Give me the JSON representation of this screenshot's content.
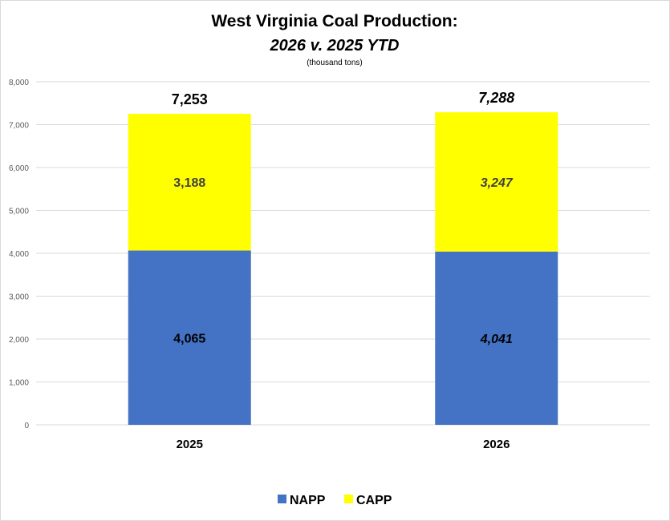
{
  "chart_data": {
    "type": "bar",
    "stacked": true,
    "title": "West Virginia Coal Production:",
    "subtitle": "2026 v. 2025 YTD",
    "units": "(thousand tons)",
    "xlabel": "",
    "ylabel": "",
    "categories": [
      "2025",
      "2026"
    ],
    "series": [
      {
        "name": "NAPP",
        "color": "#4472C4",
        "values": [
          4065,
          4041
        ],
        "labels": [
          "4,065",
          "4,041"
        ]
      },
      {
        "name": "CAPP",
        "color": "#FFFF00",
        "values": [
          3188,
          3247
        ],
        "labels": [
          "3,188",
          "3,247"
        ]
      }
    ],
    "totals": [
      7253,
      7288
    ],
    "total_labels": [
      "7,253",
      "7,288"
    ],
    "italic_categories": [
      false,
      true
    ],
    "ylim": [
      0,
      8000
    ],
    "yticks": [
      0,
      1000,
      2000,
      3000,
      4000,
      5000,
      6000,
      7000,
      8000
    ],
    "ytick_labels": [
      "0",
      "1,000",
      "2,000",
      "3,000",
      "4,000",
      "5,000",
      "6,000",
      "7,000",
      "8,000"
    ],
    "grid": true,
    "legend_position": "bottom"
  }
}
